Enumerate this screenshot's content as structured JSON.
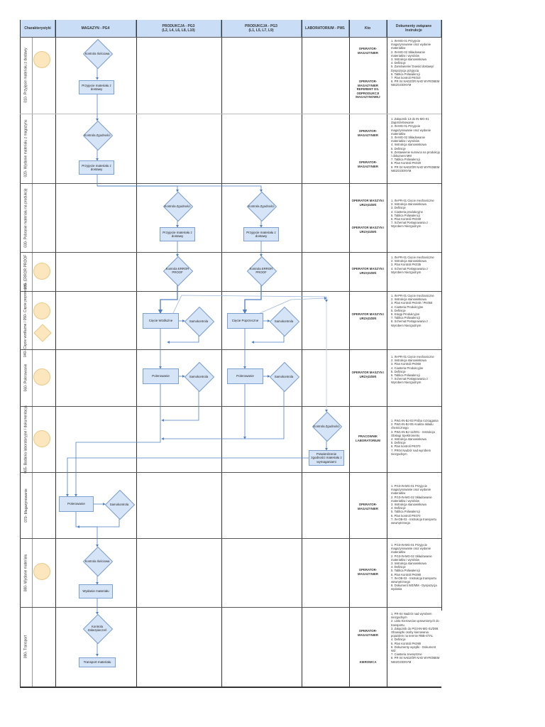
{
  "header": {
    "col_characteristics": "Charakterystyki",
    "col_warehouse": "MAGAZYN - PG4",
    "col_production1": "PRODUKCJA - PG3\n(L2, L4, L6, L8, L10)",
    "col_production2": "PRODUKCJA - PG3\n(L1, L5, L7, L9)",
    "col_lab": "LABORATORIUM - PW1",
    "col_who": "Kto",
    "col_docs": "Dokumenty związane\nInstrukcje"
  },
  "rows": [
    {
      "label": "010- Przyjęcie materiału z dostawy"
    },
    {
      "label": "020- Wydanie materiału z magazynu"
    },
    {
      "label": "030- Pobranie materiału na produkcję"
    },
    {
      "label": "035- ERROR PROOF"
    },
    {
      "label": "040- Cięcie wzdłużne / 050- Cięcie poprzeczne"
    },
    {
      "label": "060- Polerowanie"
    },
    {
      "label": "065- Badania laboratoryjne / dokumentacja"
    },
    {
      "label": "070- Magazynowanie"
    },
    {
      "label": "080- Wydanie materiału"
    },
    {
      "label": "090- Transport"
    }
  ],
  "nodes": {
    "r1_check": "Kontrola Ilościowa",
    "r1_receive": "Przyjęcie materiału z dostawy",
    "r2_check": "Kontrola Zgodności",
    "r2_receive": "Przyjęcie materiału z dostawy",
    "r3_check_a": "Kontrola Zgodności",
    "r3_check_b": "Kontrola Zgodności",
    "r3_receive_a": "Przyjęcie materiału z dostawy",
    "r3_receive_b": "Przyjęcie materiału z dostawy",
    "r4_ep_a": "Kontrola ERROR PROOF",
    "r4_ep_b": "Kontrola ERROR PROOF",
    "r5_cut_a": "Cięcie Wzdłużne",
    "r5_self_a": "Samokontrola",
    "r5_cut_b": "Cięcie Poprzeczne",
    "r5_self_b": "Samokontrola",
    "r6_pol_a": "Polerowanie",
    "r6_self_a": "Samokontrola",
    "r6_pol_b": "Polerowanie",
    "r6_self_b": "Samokontrola",
    "r7_check": "Kontrola Zgodności",
    "r7_confirm": "Potwierdzenie zgodności materiału z wymaganiami",
    "r8_pol": "Polerowanie",
    "r8_self": "Samokontrola",
    "r9_check": "Kontrola Ilościowa",
    "r9_issue": "Wydanie materiału",
    "r10_check": "Kontrola Zabezpieczeń",
    "r10_transport": "Transport materiału"
  },
  "who": [
    "OPERATOR- MAGAZYNIER",
    "OPERATOR- MAGAZYNIER REFERENT DS. ODPRODUKCJI MAGAZYNOWEJ",
    "OPERATOR- MAGAZYNIER",
    "OPERATOR- MAGAZYNIER",
    "OPERATOR MASZYN I URZĄDZEŃ",
    "OPERATOR MASZYN I URZĄDZEŃ",
    "OPERATOR MASZYN I URZĄDZEŃ",
    "OPERATOR MASZYN I URZĄDZEŃ",
    "OPERATOR MASZYN I URZĄDZEŃ",
    "PRACOWNIK LABORATORIUM",
    "OPERATOR- MAGAZYNIER",
    "OPERATOR- MAGAZYNIER",
    "OPERATOR- MAGAZYNIER",
    "KIEROWCA"
  ],
  "docs": [
    [
      "1. IN-MG-01 Przyjęcie magazynowanie oraz wydanie materiałów",
      "2. IN-MG-02 Składowanie materiałów i wyrobów",
      "3. Instrukcja stanowiskowa",
      "4. Definicje",
      "5. Zamówienie/ Dowód dostawy/ Dyspozycja przyjęcia",
      "6. Tablica Poliwalencji",
      "7. Plan kontroli PK010",
      "8. PR 04 NADZÓR NAD WYROBEM NIEZGODNYM"
    ],
    [
      "1. Załącznik 13 do IN-MG-01 Zapotrzebowanie",
      "2. IN-MG-01 Przyjęcie magazynowanie oraz wydanie materiałów",
      "3. IN-MG-02 Składowanie materiałów i wyrobów",
      "4. Instrukcja stanowiskowa",
      "5. Definicje",
      "6. Zestawienie surowca na produkcję / dokument MM",
      "7. Tablica Poliwalencji",
      "8. Plan Kontroli PK020",
      "9. PR 04 NADZÓR NAD WYROBEM NIEZGODNYM"
    ],
    [
      "1. IN-PR-01 Cięcie mechaniczne",
      "2. Instrukcja stanowiskowa",
      "3. Definicje",
      "4. Ciasteria produkcyjne",
      "5. Tablica Poliwalencji",
      "6. Plan Kontroli PK030",
      "7. Schemat Postępowania z Wyrobem Niezgodnym"
    ],
    [
      "1. IN-PR-01 Cięcie mechaniczne",
      "2. Instrukcja stanowiskowa",
      "3. Plan Kontroli PK035",
      "4. Schemat Postępowania z Wyrobem Niezgodnym"
    ],
    [
      "1. IN-PR-01 Cięcie mechaniczne",
      "2. Instrukcja stanowiskowa",
      "3. Plan Kontroli PK040 / PK050",
      "4. Ciasteria Produkcyjne",
      "5. Definicje",
      "6. Księgi Produkcyjne",
      "7. Tablica Poliwalencji",
      "8. Schemat Postępowania z Wyrobem Niezgodnym"
    ],
    [
      "1. IN-PR-01 Cięcie mechaniczne",
      "2. Instrukcja stanowiskowa",
      "3. Plan Kontroli PK060",
      "4. Ciasteria Produkcyjne",
      "5. Definicje",
      "6. Tablica Poliwalencji",
      "7. Schemat Postępowania z Wyrobem Niezgodnym"
    ],
    [
      "1. PW1-IN-BJ-03 Próba rozciągania",
      "2. PW1-IN-BJ-05 Analiza składu chemicznego",
      "3. PW1-IN-BJ-11/D01 - Instrukcja Obsługi Spektrometru",
      "4. Instrukcja stanowiskowa",
      "5. Definicje",
      "6. Plan kontroli PK070",
      "7. PR04 Nadzór nad wyrobem niezgodnym"
    ],
    [
      "1. PG3-IN-MG-01 Przyjęcie magazynowanie oraz wydanie materiałów",
      "2. PG3-IN-MG-02 Składowanie materiałów i wyrobów",
      "3. Instrukcja stanowiskowa",
      "4. Definicje",
      "5. Tablica Poliwalencji",
      "6. Plan kontroli PK070",
      "7. IN-OB-03 - Instrukcja transportu wewnętrznego"
    ],
    [
      "1. PG3-IN-MG-01 Przyjęcie magazynowanie oraz wydanie materiałów",
      "2. PG3-IN-MG-02 Składowanie materiałów i wyrobów",
      "3. Instrukcja stanowiskowa",
      "4. Definicje",
      "5. Tablica Poliwalencji",
      "6. Plan Kontroli PK080",
      "7. IN-OB-03 - Instrukcja transportu wewnętrznego",
      "8. Dokument WZ/MM - Dyspozycja wydania"
    ],
    [
      "1. PR-04 Nadzór nad wyrobem niezgodnym",
      "2. Lista Kierowców uprawnionych do transportu",
      "3. Załącznik do PG3-IN-MG-01/D08 Obowiązki osoby kierowania pojazdem na terenie RBB-STAL",
      "4. Definicje",
      "5. Plan Kontroli PK090",
      "6. Dokumenty wysyłki - Dokument WZ",
      "7. Ciasteria zewnętrzne",
      "8. PR 04 NADZÓR NAD WYROBEM NIEZGODNYM"
    ]
  ],
  "colors": {
    "header_bg": "#c9def6",
    "node_fill": "#d6e4f7",
    "node_border": "#7d9fcf",
    "connector": "#4f7fc4",
    "characteristic_fill": "#fbe6bd"
  }
}
